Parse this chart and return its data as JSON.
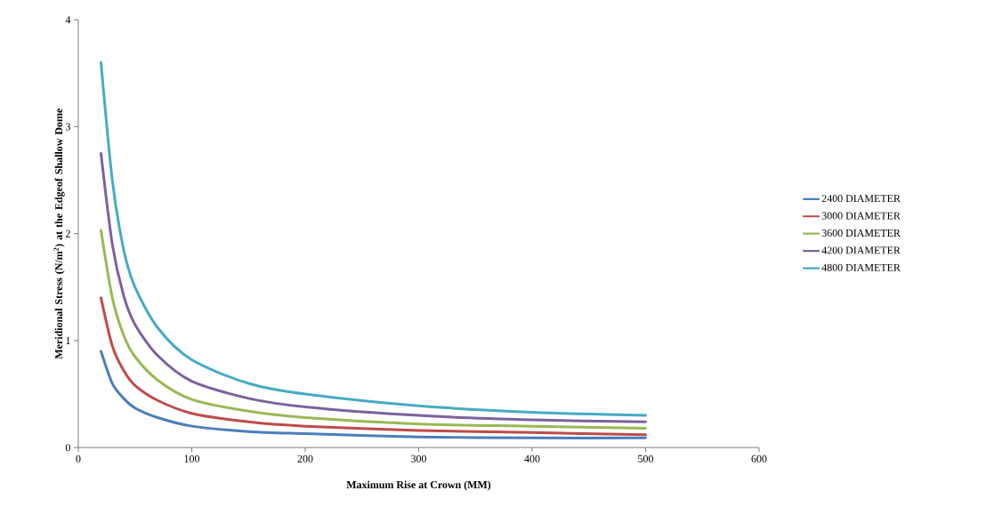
{
  "chart_data": {
    "type": "line",
    "xlabel": "Maximum Rise at Crown (MM)",
    "ylabel": "Meridional Stress (N/m$^{2}$) at the Edgeof Shallow Dome",
    "x": [
      20,
      30,
      40,
      50,
      70,
      100,
      150,
      200,
      300,
      400,
      500
    ],
    "series": [
      {
        "name": "2400 DIAMETER",
        "color": "#4a7ebb",
        "values": [
          0.9,
          0.6,
          0.46,
          0.37,
          0.28,
          0.2,
          0.15,
          0.13,
          0.1,
          0.09,
          0.09
        ]
      },
      {
        "name": "3000 DIAMETER",
        "color": "#be4b48",
        "values": [
          1.4,
          0.95,
          0.72,
          0.58,
          0.44,
          0.32,
          0.24,
          0.2,
          0.16,
          0.14,
          0.12
        ]
      },
      {
        "name": "3600 DIAMETER",
        "color": "#98b954",
        "values": [
          2.03,
          1.4,
          1.05,
          0.85,
          0.63,
          0.45,
          0.34,
          0.28,
          0.22,
          0.2,
          0.18
        ]
      },
      {
        "name": "4200 DIAMETER",
        "color": "#7d60a0",
        "values": [
          2.75,
          1.9,
          1.42,
          1.15,
          0.86,
          0.62,
          0.46,
          0.38,
          0.3,
          0.26,
          0.24
        ]
      },
      {
        "name": "4800 DIAMETER",
        "color": "#46aac5",
        "values": [
          3.6,
          2.5,
          1.85,
          1.5,
          1.12,
          0.82,
          0.6,
          0.5,
          0.39,
          0.33,
          0.3
        ]
      }
    ],
    "xlim": [
      0,
      600
    ],
    "ylim": [
      0,
      4
    ],
    "xticks": [
      0,
      100,
      200,
      300,
      400,
      500,
      600
    ],
    "yticks": [
      0,
      1,
      2,
      3,
      4
    ],
    "grid": false,
    "legend": "right",
    "marker": "none",
    "line_style": "solid"
  }
}
